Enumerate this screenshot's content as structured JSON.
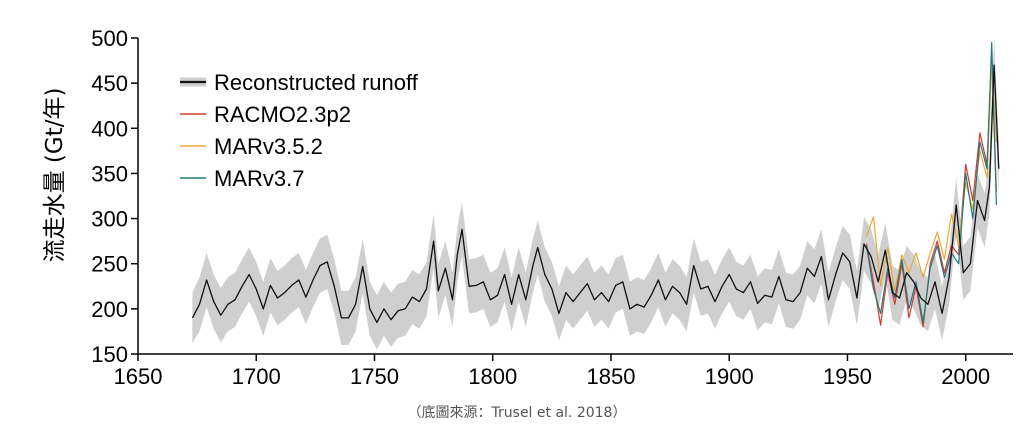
{
  "credit": "（底圖來源：Trusel et al. 2018）",
  "chart_data": {
    "type": "line",
    "title": "",
    "xlabel": "",
    "ylabel": "流走水量 (Gt/年)",
    "xlim": [
      1650,
      2020
    ],
    "ylim": [
      150,
      500
    ],
    "xticks": [
      1650,
      1700,
      1750,
      1800,
      1850,
      1900,
      1950,
      2000
    ],
    "yticks": [
      150,
      200,
      250,
      300,
      350,
      400,
      450,
      500
    ],
    "legend_position": "top-left",
    "series": [
      {
        "name": "Reconstructed runoff",
        "color": "#111111",
        "band_color": "#cfcfcf",
        "x": [
          1673,
          1676,
          1679,
          1682,
          1685,
          1688,
          1691,
          1694,
          1697,
          1700,
          1703,
          1706,
          1709,
          1712,
          1715,
          1718,
          1721,
          1724,
          1727,
          1730,
          1733,
          1736,
          1739,
          1742,
          1745,
          1748,
          1751,
          1754,
          1757,
          1760,
          1763,
          1766,
          1769,
          1772,
          1775,
          1777,
          1780,
          1783,
          1785,
          1787,
          1790,
          1793,
          1796,
          1799,
          1802,
          1805,
          1808,
          1811,
          1814,
          1817,
          1819,
          1822,
          1825,
          1828,
          1831,
          1834,
          1837,
          1840,
          1843,
          1846,
          1849,
          1852,
          1855,
          1858,
          1861,
          1864,
          1867,
          1870,
          1873,
          1876,
          1879,
          1882,
          1885,
          1888,
          1891,
          1894,
          1897,
          1900,
          1903,
          1906,
          1909,
          1912,
          1915,
          1918,
          1921,
          1924,
          1927,
          1930,
          1933,
          1936,
          1939,
          1942,
          1945,
          1948,
          1951,
          1954,
          1957,
          1960,
          1963,
          1966,
          1969,
          1972,
          1975,
          1978,
          1981,
          1984,
          1987,
          1990,
          1993,
          1996,
          1999,
          2002,
          2005,
          2008,
          2010,
          2012,
          2014
        ],
        "y": [
          190,
          205,
          232,
          208,
          193,
          205,
          210,
          225,
          238,
          222,
          200,
          226,
          212,
          218,
          226,
          232,
          213,
          232,
          248,
          252,
          225,
          190,
          190,
          205,
          247,
          200,
          185,
          200,
          188,
          198,
          200,
          213,
          208,
          222,
          275,
          220,
          245,
          210,
          260,
          288,
          225,
          226,
          230,
          210,
          215,
          238,
          205,
          238,
          210,
          248,
          268,
          238,
          222,
          195,
          218,
          208,
          218,
          228,
          210,
          218,
          208,
          226,
          230,
          200,
          205,
          202,
          215,
          232,
          210,
          225,
          218,
          205,
          248,
          222,
          225,
          208,
          225,
          238,
          222,
          218,
          230,
          206,
          215,
          213,
          236,
          210,
          208,
          218,
          245,
          236,
          258,
          210,
          238,
          262,
          252,
          212,
          272,
          258,
          230,
          265,
          218,
          212,
          240,
          230,
          212,
          205,
          230,
          195,
          235,
          315,
          240,
          250,
          320,
          298,
          335,
          470,
          355
        ],
        "lower": [
          162,
          175,
          202,
          178,
          163,
          175,
          180,
          195,
          208,
          192,
          170,
          196,
          182,
          188,
          196,
          202,
          183,
          202,
          218,
          222,
          195,
          160,
          160,
          175,
          217,
          170,
          155,
          170,
          158,
          168,
          170,
          183,
          178,
          192,
          245,
          190,
          215,
          180,
          230,
          258,
          195,
          196,
          200,
          180,
          185,
          208,
          175,
          208,
          180,
          218,
          238,
          208,
          192,
          165,
          188,
          178,
          188,
          198,
          180,
          188,
          178,
          196,
          200,
          170,
          175,
          172,
          185,
          202,
          180,
          195,
          188,
          175,
          218,
          192,
          195,
          178,
          195,
          208,
          192,
          188,
          200,
          176,
          185,
          183,
          206,
          180,
          178,
          188,
          215,
          206,
          228,
          180,
          208,
          232,
          222,
          182,
          242,
          228,
          200,
          235,
          188,
          182,
          210,
          200,
          182,
          175,
          200,
          165,
          205,
          285,
          210,
          220,
          290,
          268,
          305,
          440,
          325
        ],
        "upper": [
          218,
          235,
          262,
          238,
          223,
          235,
          240,
          255,
          268,
          252,
          230,
          256,
          242,
          248,
          256,
          262,
          243,
          262,
          278,
          282,
          255,
          220,
          220,
          235,
          277,
          230,
          215,
          230,
          218,
          228,
          230,
          243,
          238,
          252,
          305,
          250,
          275,
          240,
          290,
          318,
          255,
          256,
          260,
          240,
          245,
          268,
          235,
          268,
          240,
          278,
          298,
          268,
          252,
          225,
          248,
          238,
          248,
          258,
          240,
          248,
          238,
          256,
          260,
          230,
          235,
          232,
          245,
          262,
          240,
          255,
          248,
          235,
          278,
          252,
          255,
          238,
          255,
          268,
          252,
          248,
          260,
          236,
          245,
          243,
          266,
          240,
          238,
          248,
          275,
          266,
          288,
          240,
          268,
          292,
          282,
          242,
          302,
          288,
          260,
          295,
          248,
          242,
          270,
          260,
          242,
          235,
          260,
          225,
          265,
          345,
          270,
          280,
          350,
          328,
          365,
          500,
          385
        ]
      },
      {
        "name": "RACMO2.3p2",
        "color": "#d63a2e",
        "x": [
          1958,
          1961,
          1964,
          1967,
          1970,
          1973,
          1976,
          1979,
          1982,
          1985,
          1988,
          1991,
          1994,
          1997,
          2000,
          2003,
          2006,
          2009,
          2011,
          2013
        ],
        "y": [
          272,
          230,
          182,
          240,
          205,
          250,
          190,
          225,
          180,
          250,
          275,
          240,
          270,
          260,
          360,
          320,
          395,
          360,
          480,
          330
        ]
      },
      {
        "name": "MARv3.5.2",
        "color": "#e8a93a",
        "x": [
          1958,
          1961,
          1964,
          1967,
          1970,
          1973,
          1976,
          1979,
          1982,
          1985,
          1988,
          1991,
          1994,
          1997,
          2000,
          2003,
          2006,
          2009,
          2011,
          2013
        ],
        "y": [
          280,
          302,
          225,
          268,
          220,
          260,
          240,
          262,
          235,
          262,
          285,
          255,
          305,
          270,
          340,
          310,
          375,
          345,
          470,
          385
        ]
      },
      {
        "name": "MARv3.7",
        "color": "#1f7a80",
        "x": [
          1958,
          1961,
          1964,
          1967,
          1970,
          1973,
          1976,
          1979,
          1982,
          1985,
          1988,
          1991,
          1994,
          1997,
          2000,
          2003,
          2006,
          2009,
          2011,
          2013
        ],
        "y": [
          270,
          222,
          195,
          245,
          212,
          255,
          200,
          230,
          185,
          245,
          270,
          235,
          262,
          250,
          350,
          300,
          385,
          355,
          495,
          315
        ]
      }
    ]
  }
}
